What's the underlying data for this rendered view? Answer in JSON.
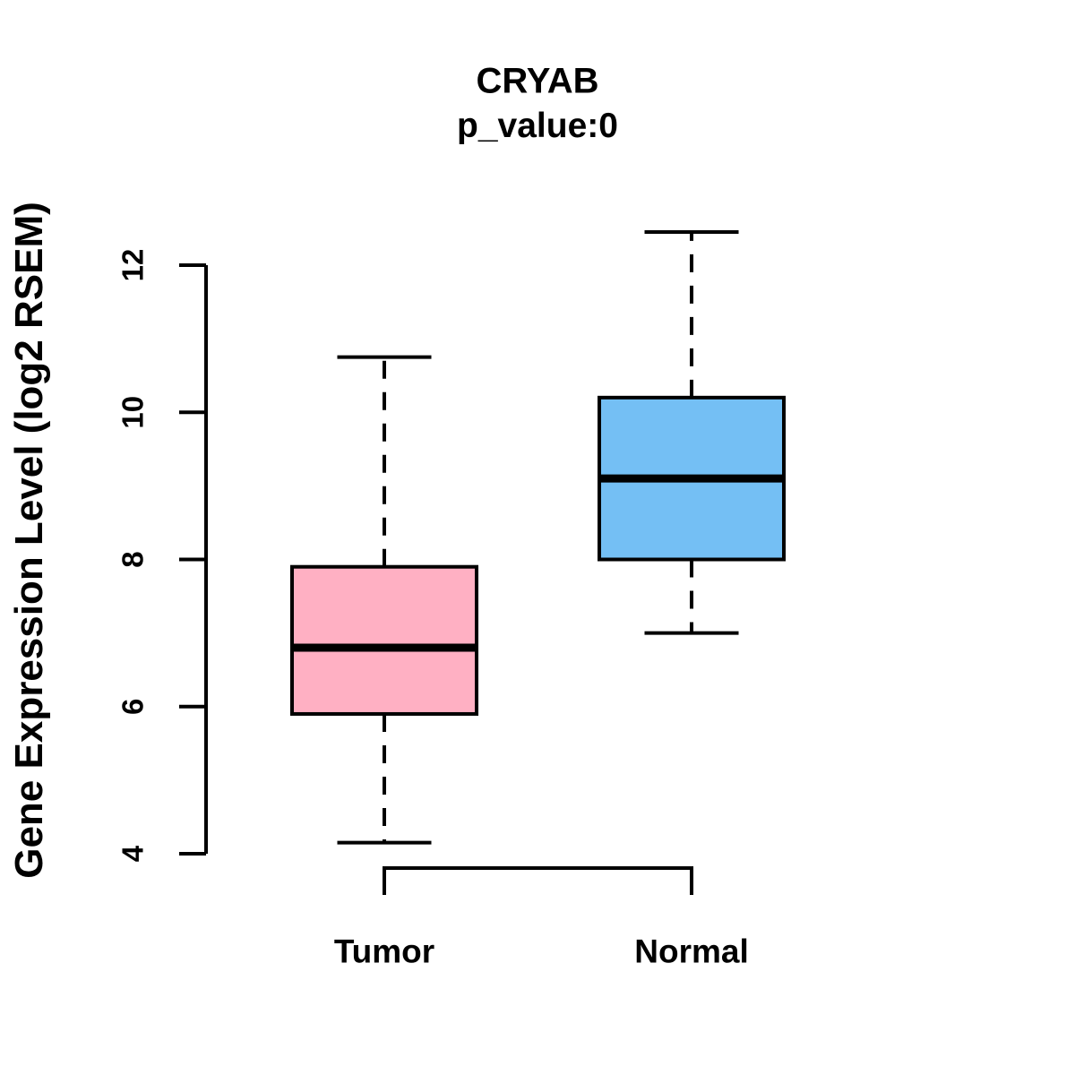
{
  "chart_data": {
    "type": "boxplot",
    "title": "CRYAB",
    "subtitle": "p_value:0",
    "xlabel": "",
    "ylabel": "Gene Expression Level (log2 RSEM)",
    "categories": [
      "Tumor",
      "Normal"
    ],
    "yticks": [
      4,
      6,
      8,
      10,
      12
    ],
    "ylim": [
      3.5,
      12.6
    ],
    "grid": false,
    "legend_position": "none",
    "series": [
      {
        "name": "Tumor",
        "box_fill": "#FFB0C3",
        "whisker_low": 4.15,
        "q1": 5.9,
        "median": 6.8,
        "q3": 7.9,
        "whisker_high": 10.75
      },
      {
        "name": "Normal",
        "box_fill": "#74BFF4",
        "whisker_low": 7.0,
        "q1": 8.0,
        "median": 9.1,
        "q3": 10.2,
        "whisker_high": 12.45
      }
    ],
    "box_border_color": "#000000",
    "median_color": "#000000",
    "axis_color": "#000000"
  }
}
